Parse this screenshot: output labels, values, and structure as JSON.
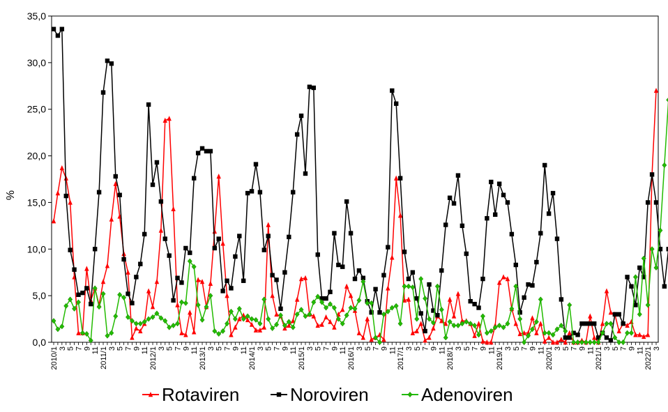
{
  "chart_data": {
    "type": "line",
    "title": "",
    "xlabel": "",
    "ylabel": "%",
    "ylim": [
      0,
      35
    ],
    "y_ticks": [
      "0,0",
      "5,0",
      "10,0",
      "15,0",
      "20,0",
      "25,0",
      "30,0",
      "35,0"
    ],
    "x_tick_labels": [
      "2010/1",
      "3",
      "5",
      "7",
      "9",
      "11",
      "2011/1",
      "3",
      "5",
      "7",
      "9",
      "11",
      "2012/1",
      "3",
      "5",
      "7",
      "9",
      "11",
      "2013/1",
      "3",
      "5",
      "7",
      "9",
      "11",
      "2014/1",
      "3",
      "5",
      "7",
      "9",
      "11",
      "2015/1",
      "3",
      "5",
      "7",
      "9",
      "11",
      "2016/1",
      "3",
      "5",
      "7",
      "9",
      "11",
      "2017/1",
      "3",
      "5",
      "7",
      "9",
      "11",
      "2018/1",
      "3",
      "5",
      "7",
      "9",
      "11",
      "2019/1",
      "3",
      "5",
      "7",
      "9",
      "11",
      "2020/1",
      "3",
      "5",
      "7",
      "9",
      "11",
      "2021/1",
      "3",
      "5",
      "7",
      "9",
      "11",
      "2022/1",
      "3"
    ],
    "grid": false,
    "legend_position": "bottom",
    "series": [
      {
        "name": "Rotaviren",
        "color": "#ff0000",
        "marker": "triangle",
        "values": [
          13.0,
          16.0,
          18.7,
          17.6,
          15.0,
          7.0,
          1.0,
          1.0,
          7.9,
          4.5,
          5.8,
          4.0,
          6.5,
          8.2,
          13.2,
          17.0,
          13.5,
          9.5,
          7.5,
          0.5,
          1.5,
          1.2,
          2.0,
          5.5,
          3.8,
          6.5,
          12.0,
          23.8,
          24.0,
          14.3,
          4.0,
          1.0,
          0.8,
          3.2,
          1.1,
          6.7,
          6.5,
          3.8,
          6.3,
          11.9,
          17.8,
          10.6,
          5.0,
          0.8,
          1.6,
          2.5,
          2.9,
          2.4,
          1.9,
          1.3,
          1.3,
          1.6,
          12.6,
          5.0,
          3.0,
          2.8,
          1.5,
          1.8,
          2.3,
          4.6,
          6.8,
          6.9,
          3.0,
          2.8,
          1.8,
          1.9,
          2.7,
          2.2,
          1.6,
          3.0,
          3.5,
          6.0,
          5.0,
          3.4,
          1.0,
          0.5,
          2.5,
          0.3,
          0.5,
          0.8,
          0.3,
          5.8,
          9.1,
          17.6,
          13.6,
          4.5,
          4.6,
          1.0,
          1.2,
          2.0,
          0.2,
          0.5,
          1.5,
          2.8,
          2.3,
          2.0,
          4.6,
          2.8,
          5.2,
          2.3,
          2.3,
          2.0,
          0.7,
          2.0,
          0.1,
          0.0,
          0.0,
          1.8,
          6.4,
          7.0,
          6.8,
          3.6,
          2.0,
          0.9,
          1.0,
          1.0,
          2.6,
          1.0,
          2.0,
          0.1,
          0.5,
          0.0,
          0.0,
          0.3,
          0.0,
          1.0,
          0.0,
          0.0,
          0.2,
          0.0,
          2.8,
          0.5,
          0.0,
          2.0,
          5.5,
          3.2,
          3.0,
          1.2,
          2.0,
          1.8,
          2.2,
          0.8,
          0.8,
          0.6,
          0.8,
          18.0,
          27.0
        ]
      },
      {
        "name": "Noroviren",
        "color": "#000000",
        "marker": "square",
        "values": [
          33.6,
          32.9,
          33.6,
          15.7,
          9.9,
          7.8,
          5.1,
          5.3,
          5.8,
          4.1,
          10.0,
          16.1,
          26.8,
          30.2,
          29.9,
          17.8,
          15.8,
          8.9,
          5.2,
          4.2,
          7.0,
          8.4,
          11.6,
          25.5,
          16.9,
          19.3,
          15.1,
          11.1,
          9.3,
          4.5,
          6.9,
          6.4,
          10.1,
          9.6,
          17.6,
          20.3,
          20.8,
          20.5,
          20.5,
          10.1,
          11.1,
          5.5,
          6.6,
          5.8,
          9.2,
          11.4,
          6.6,
          16.0,
          16.2,
          19.1,
          16.1,
          9.9,
          11.4,
          7.2,
          6.7,
          3.6,
          7.5,
          11.3,
          16.1,
          22.3,
          24.3,
          18.1,
          27.4,
          27.3,
          9.4,
          4.7,
          4.7,
          5.4,
          11.7,
          8.3,
          8.1,
          15.1,
          11.7,
          6.8,
          7.7,
          6.9,
          4.4,
          3.2,
          5.7,
          3.2,
          7.2,
          10.2,
          27.0,
          25.6,
          17.6,
          9.7,
          6.8,
          7.5,
          4.7,
          3.1,
          1.2,
          6.2,
          3.4,
          2.9,
          7.7,
          12.6,
          15.5,
          14.9,
          17.9,
          12.5,
          9.5,
          4.4,
          4.1,
          3.7,
          6.8,
          13.3,
          17.2,
          13.7,
          17.0,
          15.8,
          15.0,
          11.6,
          8.3,
          3.2,
          4.8,
          6.2,
          6.1,
          8.6,
          11.7,
          19.0,
          13.8,
          16.0,
          11.1,
          4.6,
          0.5,
          0.5,
          1.0,
          0.8,
          2.0,
          2.0,
          2.0,
          2.0,
          0.5,
          1.0,
          0.5,
          0.2,
          3.0,
          3.0,
          2.0,
          7.0,
          6.0,
          4.0,
          8.0,
          7.0,
          15.0,
          18.0,
          15.0,
          10.0,
          6.0,
          10.0
        ]
      },
      {
        "name": "Adenoviren",
        "color": "#22bb00",
        "marker": "diamond",
        "values": [
          2.3,
          1.4,
          1.7,
          3.9,
          4.6,
          3.6,
          4.3,
          1.0,
          0.9,
          0.2,
          5.8,
          3.8,
          5.2,
          0.7,
          1.0,
          2.8,
          5.1,
          4.8,
          2.7,
          2.3,
          2.0,
          2.0,
          2.2,
          2.5,
          2.7,
          3.1,
          2.6,
          2.3,
          1.6,
          1.8,
          2.0,
          4.3,
          4.2,
          8.7,
          8.1,
          4.0,
          2.4,
          3.8,
          5.0,
          1.2,
          0.9,
          1.2,
          2.0,
          3.3,
          2.5,
          3.6,
          2.5,
          2.8,
          2.5,
          2.4,
          2.0,
          4.6,
          2.5,
          1.5,
          1.9,
          2.9,
          1.8,
          2.2,
          1.6,
          3.0,
          3.5,
          2.8,
          3.0,
          4.3,
          4.9,
          4.3,
          3.7,
          4.1,
          3.7,
          2.5,
          2.0,
          2.9,
          3.7,
          3.6,
          4.5,
          6.5,
          4.2,
          4.2,
          0.5,
          0.0,
          3.0,
          3.3,
          3.7,
          3.9,
          2.0,
          6.0,
          6.0,
          5.9,
          2.5,
          6.8,
          4.7,
          2.5,
          2.1,
          6.0,
          3.5,
          0.5,
          2.2,
          1.8,
          1.8,
          2.0,
          2.2,
          2.0,
          1.8,
          0.8,
          2.8,
          1.0,
          1.2,
          1.6,
          1.8,
          1.6,
          2.0,
          3.6,
          6.0,
          2.5,
          0.0,
          0.7,
          1.4,
          2.2,
          4.6,
          1.0,
          1.0,
          0.8,
          1.4,
          1.8,
          1.2,
          4.0,
          0.0,
          0.0,
          0.0,
          0.0,
          0.0,
          0.0,
          0.0,
          1.0,
          2.0,
          2.0,
          0.5,
          0.0,
          0.0,
          1.0,
          1.0,
          7.0,
          3.0,
          9.0,
          4.0,
          10.0,
          8.0,
          12.0,
          19.0,
          26.0
        ]
      }
    ]
  }
}
